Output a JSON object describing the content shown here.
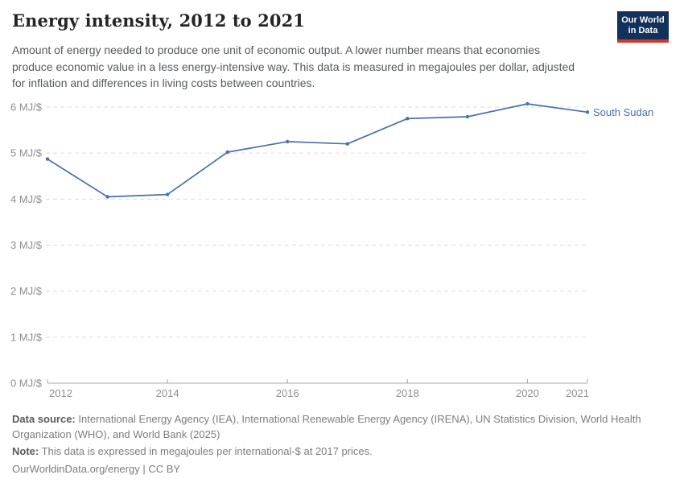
{
  "header": {
    "title": "Energy intensity, 2012 to 2021",
    "subtitle": "Amount of energy needed to produce one unit of economic output. A lower number means that economies produce economic value in a less energy-intensive way. This data is measured in megajoules per dollar, adjusted for inflation and differences in living costs between countries.",
    "logo_line1": "Our World",
    "logo_line2": "in Data"
  },
  "chart_data": {
    "type": "line",
    "title": "Energy intensity, 2012 to 2021",
    "x": [
      2012,
      2013,
      2014,
      2015,
      2016,
      2017,
      2018,
      2019,
      2020,
      2021
    ],
    "series": [
      {
        "name": "South Sudan",
        "color": "#4c6fad",
        "values": [
          4.87,
          4.05,
          4.1,
          5.02,
          5.25,
          5.2,
          5.75,
          5.79,
          6.07,
          5.89
        ]
      }
    ],
    "xlabel": "",
    "ylabel": "MJ/$",
    "ylim": [
      0,
      6
    ],
    "yticks": [
      {
        "v": 0,
        "label": "0 MJ/$"
      },
      {
        "v": 1,
        "label": "1 MJ/$"
      },
      {
        "v": 2,
        "label": "2 MJ/$"
      },
      {
        "v": 3,
        "label": "3 MJ/$"
      },
      {
        "v": 4,
        "label": "4 MJ/$"
      },
      {
        "v": 5,
        "label": "5 MJ/$"
      },
      {
        "v": 6,
        "label": "6 MJ/$"
      }
    ],
    "xticks": [
      2012,
      2014,
      2016,
      2018,
      2020,
      2021
    ],
    "grid": "horizontal-dashed",
    "legend_position": "line-end-label"
  },
  "footer": {
    "datasource_label": "Data source:",
    "datasource_text": " International Energy Agency (IEA), International Renewable Energy Agency (IRENA), UN Statistics Division, World Health Organization (WHO), and World Bank (2025)",
    "note_label": "Note:",
    "note_text": " This data is expressed in megajoules per international-$ at 2017 prices.",
    "link": "OurWorldinData.org/energy | CC BY"
  },
  "colors": {
    "line": "#4c6fad",
    "grid": "#dcdcdc",
    "axis": "#a8a8a8",
    "tick_label": "#8f8f8f",
    "logo_bg": "#12315b",
    "logo_red": "#d3382b"
  }
}
